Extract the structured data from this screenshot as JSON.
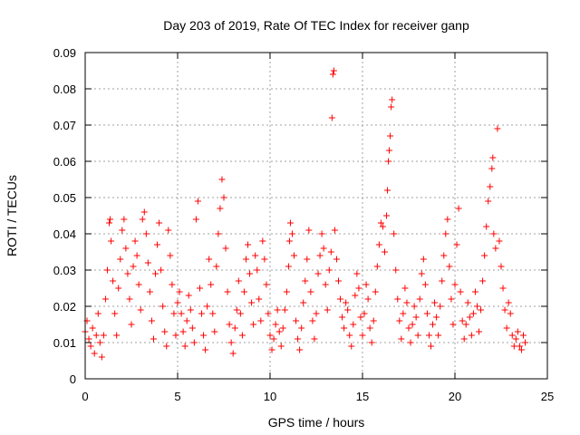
{
  "chart_data": {
    "type": "scatter",
    "title": "Day 203 of 2019, Rate Of TEC Index for receiver ganp",
    "xlabel": "GPS time / hours",
    "ylabel": "ROTI / TECUs",
    "xlim": [
      0,
      25
    ],
    "ylim": [
      0,
      0.09
    ],
    "x_ticks": [
      0,
      5,
      10,
      15,
      20,
      25
    ],
    "x_tick_labels": [
      "0",
      "5",
      "10",
      "15",
      "20",
      "25"
    ],
    "y_ticks": [
      0,
      0.01,
      0.02,
      0.03,
      0.04,
      0.05,
      0.06,
      0.07,
      0.08,
      0.09
    ],
    "y_tick_labels": [
      "0",
      "0.01",
      "0.02",
      "0.03",
      "0.04",
      "0.05",
      "0.06",
      "0.07",
      "0.08",
      "0.09"
    ],
    "grid": true,
    "marker": "+",
    "color": "#ff0000",
    "series": [
      {
        "points": [
          [
            0.0,
            0.013
          ],
          [
            0.1,
            0.016
          ],
          [
            0.2,
            0.011
          ],
          [
            0.3,
            0.009
          ],
          [
            0.4,
            0.014
          ],
          [
            0.5,
            0.007
          ],
          [
            0.6,
            0.012
          ],
          [
            0.7,
            0.018
          ],
          [
            0.8,
            0.01
          ],
          [
            0.9,
            0.006
          ],
          [
            1.0,
            0.012
          ],
          [
            1.1,
            0.022
          ],
          [
            1.2,
            0.03
          ],
          [
            1.3,
            0.043
          ],
          [
            1.35,
            0.044
          ],
          [
            1.4,
            0.038
          ],
          [
            1.5,
            0.027
          ],
          [
            1.6,
            0.018
          ],
          [
            1.7,
            0.012
          ],
          [
            1.8,
            0.025
          ],
          [
            1.9,
            0.033
          ],
          [
            2.0,
            0.041
          ],
          [
            2.1,
            0.044
          ],
          [
            2.2,
            0.036
          ],
          [
            2.3,
            0.029
          ],
          [
            2.4,
            0.022
          ],
          [
            2.5,
            0.015
          ],
          [
            2.6,
            0.031
          ],
          [
            2.7,
            0.038
          ],
          [
            2.8,
            0.034
          ],
          [
            2.9,
            0.026
          ],
          [
            3.0,
            0.019
          ],
          [
            3.1,
            0.044
          ],
          [
            3.2,
            0.046
          ],
          [
            3.3,
            0.04
          ],
          [
            3.4,
            0.032
          ],
          [
            3.5,
            0.024
          ],
          [
            3.6,
            0.016
          ],
          [
            3.7,
            0.011
          ],
          [
            3.8,
            0.029
          ],
          [
            3.9,
            0.037
          ],
          [
            4.0,
            0.043
          ],
          [
            4.1,
            0.03
          ],
          [
            4.2,
            0.02
          ],
          [
            4.3,
            0.013
          ],
          [
            4.4,
            0.009
          ],
          [
            4.5,
            0.041
          ],
          [
            4.6,
            0.034
          ],
          [
            4.7,
            0.026
          ],
          [
            4.8,
            0.018
          ],
          [
            4.9,
            0.012
          ],
          [
            5.0,
            0.021
          ],
          [
            5.1,
            0.024
          ],
          [
            5.2,
            0.018
          ],
          [
            5.3,
            0.013
          ],
          [
            5.4,
            0.009
          ],
          [
            5.5,
            0.016
          ],
          [
            5.6,
            0.023
          ],
          [
            5.7,
            0.019
          ],
          [
            5.8,
            0.014
          ],
          [
            5.9,
            0.01
          ],
          [
            6.0,
            0.044
          ],
          [
            6.1,
            0.049
          ],
          [
            6.2,
            0.025
          ],
          [
            6.3,
            0.018
          ],
          [
            6.4,
            0.012
          ],
          [
            6.5,
            0.008
          ],
          [
            6.6,
            0.02
          ],
          [
            6.7,
            0.033
          ],
          [
            6.8,
            0.026
          ],
          [
            6.9,
            0.018
          ],
          [
            7.0,
            0.013
          ],
          [
            7.1,
            0.031
          ],
          [
            7.2,
            0.04
          ],
          [
            7.3,
            0.047
          ],
          [
            7.4,
            0.055
          ],
          [
            7.5,
            0.05
          ],
          [
            7.6,
            0.036
          ],
          [
            7.7,
            0.024
          ],
          [
            7.8,
            0.015
          ],
          [
            7.9,
            0.01
          ],
          [
            8.0,
            0.007
          ],
          [
            8.1,
            0.014
          ],
          [
            8.2,
            0.019
          ],
          [
            8.3,
            0.027
          ],
          [
            8.4,
            0.018
          ],
          [
            8.5,
            0.012
          ],
          [
            8.6,
            0.024
          ],
          [
            8.7,
            0.033
          ],
          [
            8.8,
            0.037
          ],
          [
            8.9,
            0.029
          ],
          [
            9.0,
            0.021
          ],
          [
            9.1,
            0.015
          ],
          [
            9.2,
            0.034
          ],
          [
            9.3,
            0.03
          ],
          [
            9.4,
            0.022
          ],
          [
            9.5,
            0.016
          ],
          [
            9.6,
            0.038
          ],
          [
            9.7,
            0.033
          ],
          [
            9.8,
            0.026
          ],
          [
            9.9,
            0.018
          ],
          [
            10.0,
            0.012
          ],
          [
            10.1,
            0.008
          ],
          [
            10.2,
            0.011
          ],
          [
            10.3,
            0.015
          ],
          [
            10.4,
            0.019
          ],
          [
            10.5,
            0.013
          ],
          [
            10.6,
            0.009
          ],
          [
            10.7,
            0.014
          ],
          [
            10.8,
            0.019
          ],
          [
            10.9,
            0.024
          ],
          [
            11.0,
            0.031
          ],
          [
            11.05,
            0.038
          ],
          [
            11.1,
            0.043
          ],
          [
            11.2,
            0.04
          ],
          [
            11.3,
            0.034
          ],
          [
            11.4,
            0.016
          ],
          [
            11.5,
            0.011
          ],
          [
            11.6,
            0.008
          ],
          [
            11.7,
            0.014
          ],
          [
            11.8,
            0.021
          ],
          [
            11.9,
            0.027
          ],
          [
            12.0,
            0.033
          ],
          [
            12.1,
            0.041
          ],
          [
            12.2,
            0.024
          ],
          [
            12.3,
            0.016
          ],
          [
            12.4,
            0.011
          ],
          [
            12.5,
            0.018
          ],
          [
            12.6,
            0.029
          ],
          [
            12.7,
            0.034
          ],
          [
            12.8,
            0.04
          ],
          [
            12.9,
            0.036
          ],
          [
            13.0,
            0.026
          ],
          [
            13.1,
            0.019
          ],
          [
            13.2,
            0.03
          ],
          [
            13.3,
            0.035
          ],
          [
            13.35,
            0.072
          ],
          [
            13.4,
            0.084
          ],
          [
            13.45,
            0.085
          ],
          [
            13.5,
            0.041
          ],
          [
            13.6,
            0.033
          ],
          [
            13.7,
            0.027
          ],
          [
            13.8,
            0.022
          ],
          [
            13.9,
            0.017
          ],
          [
            14.0,
            0.014
          ],
          [
            14.1,
            0.021
          ],
          [
            14.2,
            0.019
          ],
          [
            14.3,
            0.012
          ],
          [
            14.4,
            0.009
          ],
          [
            14.5,
            0.015
          ],
          [
            14.6,
            0.023
          ],
          [
            14.7,
            0.029
          ],
          [
            14.8,
            0.025
          ],
          [
            14.9,
            0.017
          ],
          [
            15.0,
            0.012
          ],
          [
            15.1,
            0.018
          ],
          [
            15.2,
            0.026
          ],
          [
            15.3,
            0.022
          ],
          [
            15.4,
            0.014
          ],
          [
            15.5,
            0.01
          ],
          [
            15.6,
            0.016
          ],
          [
            15.7,
            0.024
          ],
          [
            15.8,
            0.031
          ],
          [
            15.9,
            0.037
          ],
          [
            16.0,
            0.043
          ],
          [
            16.1,
            0.042
          ],
          [
            16.2,
            0.035
          ],
          [
            16.3,
            0.045
          ],
          [
            16.35,
            0.052
          ],
          [
            16.4,
            0.06
          ],
          [
            16.45,
            0.063
          ],
          [
            16.5,
            0.067
          ],
          [
            16.55,
            0.075
          ],
          [
            16.6,
            0.077
          ],
          [
            16.7,
            0.04
          ],
          [
            16.8,
            0.03
          ],
          [
            16.9,
            0.022
          ],
          [
            17.0,
            0.016
          ],
          [
            17.1,
            0.011
          ],
          [
            17.2,
            0.018
          ],
          [
            17.3,
            0.025
          ],
          [
            17.4,
            0.021
          ],
          [
            17.5,
            0.014
          ],
          [
            17.6,
            0.01
          ],
          [
            17.7,
            0.015
          ],
          [
            17.8,
            0.02
          ],
          [
            17.9,
            0.017
          ],
          [
            18.0,
            0.012
          ],
          [
            18.1,
            0.022
          ],
          [
            18.2,
            0.029
          ],
          [
            18.3,
            0.033
          ],
          [
            18.4,
            0.026
          ],
          [
            18.5,
            0.018
          ],
          [
            18.6,
            0.012
          ],
          [
            18.7,
            0.009
          ],
          [
            18.8,
            0.015
          ],
          [
            18.9,
            0.021
          ],
          [
            19.0,
            0.017
          ],
          [
            19.1,
            0.012
          ],
          [
            19.2,
            0.02
          ],
          [
            19.3,
            0.027
          ],
          [
            19.4,
            0.034
          ],
          [
            19.5,
            0.04
          ],
          [
            19.6,
            0.044
          ],
          [
            19.7,
            0.031
          ],
          [
            19.8,
            0.022
          ],
          [
            19.9,
            0.015
          ],
          [
            20.0,
            0.026
          ],
          [
            20.1,
            0.037
          ],
          [
            20.2,
            0.047
          ],
          [
            20.3,
            0.024
          ],
          [
            20.4,
            0.016
          ],
          [
            20.5,
            0.011
          ],
          [
            20.6,
            0.015
          ],
          [
            20.7,
            0.021
          ],
          [
            20.8,
            0.017
          ],
          [
            20.9,
            0.012
          ],
          [
            21.0,
            0.018
          ],
          [
            21.1,
            0.024
          ],
          [
            21.2,
            0.02
          ],
          [
            21.3,
            0.013
          ],
          [
            21.4,
            0.019
          ],
          [
            21.5,
            0.027
          ],
          [
            21.6,
            0.034
          ],
          [
            21.7,
            0.042
          ],
          [
            21.8,
            0.049
          ],
          [
            21.9,
            0.053
          ],
          [
            22.0,
            0.058
          ],
          [
            22.05,
            0.061
          ],
          [
            22.1,
            0.04
          ],
          [
            22.2,
            0.036
          ],
          [
            22.3,
            0.069
          ],
          [
            22.4,
            0.038
          ],
          [
            22.5,
            0.031
          ],
          [
            22.6,
            0.025
          ],
          [
            22.7,
            0.019
          ],
          [
            22.8,
            0.014
          ],
          [
            22.9,
            0.021
          ],
          [
            23.0,
            0.018
          ],
          [
            23.1,
            0.012
          ],
          [
            23.2,
            0.009
          ],
          [
            23.3,
            0.011
          ],
          [
            23.4,
            0.013
          ],
          [
            23.5,
            0.009
          ],
          [
            23.6,
            0.008
          ],
          [
            23.7,
            0.012
          ],
          [
            23.8,
            0.01
          ]
        ]
      }
    ]
  }
}
